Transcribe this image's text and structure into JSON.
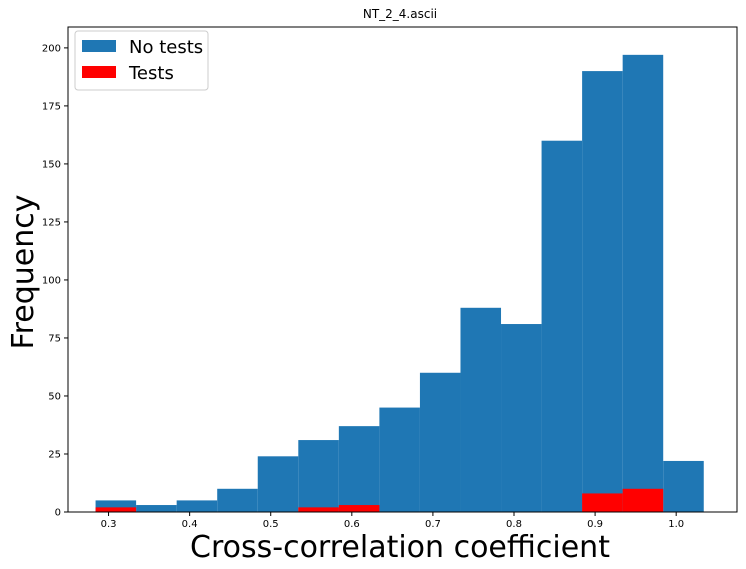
{
  "chart_data": {
    "type": "bar",
    "title": "NT_2_4.ascii",
    "xlabel": "Cross-correlation coefficient",
    "ylabel": "Frequency",
    "xlim": [
      0.25,
      1.075
    ],
    "ylim": [
      0,
      209
    ],
    "xticks": [
      0.3,
      0.4,
      0.5,
      0.6,
      0.7,
      0.8,
      0.9,
      1.0
    ],
    "xtick_labels": [
      "0.3",
      "0.4",
      "0.5",
      "0.6",
      "0.7",
      "0.8",
      "0.9",
      "1.0"
    ],
    "yticks": [
      0,
      25,
      50,
      75,
      100,
      125,
      150,
      175,
      200
    ],
    "ytick_labels": [
      "0",
      "25",
      "50",
      "75",
      "100",
      "125",
      "150",
      "175",
      "200"
    ],
    "grid": false,
    "legend_position": "top-left",
    "series": [
      {
        "name": "No tests",
        "color": "#1f77b4",
        "bin_edges": [
          0.284,
          0.334,
          0.384,
          0.434,
          0.484,
          0.534,
          0.584,
          0.634,
          0.684,
          0.734,
          0.784,
          0.834,
          0.884,
          0.934,
          0.984,
          1.034
        ],
        "values": [
          5,
          3,
          5,
          10,
          24,
          31,
          37,
          45,
          60,
          88,
          81,
          160,
          190,
          197,
          22
        ]
      },
      {
        "name": "Tests",
        "color": "#ff0000",
        "bin_edges": [
          0.284,
          0.334,
          0.384,
          0.434,
          0.484,
          0.534,
          0.584,
          0.634,
          0.684,
          0.734,
          0.784,
          0.834,
          0.884,
          0.934,
          0.984
        ],
        "values": [
          2,
          0,
          0,
          0,
          0,
          2,
          3,
          0,
          0,
          0,
          0,
          0,
          8,
          10
        ]
      }
    ]
  }
}
